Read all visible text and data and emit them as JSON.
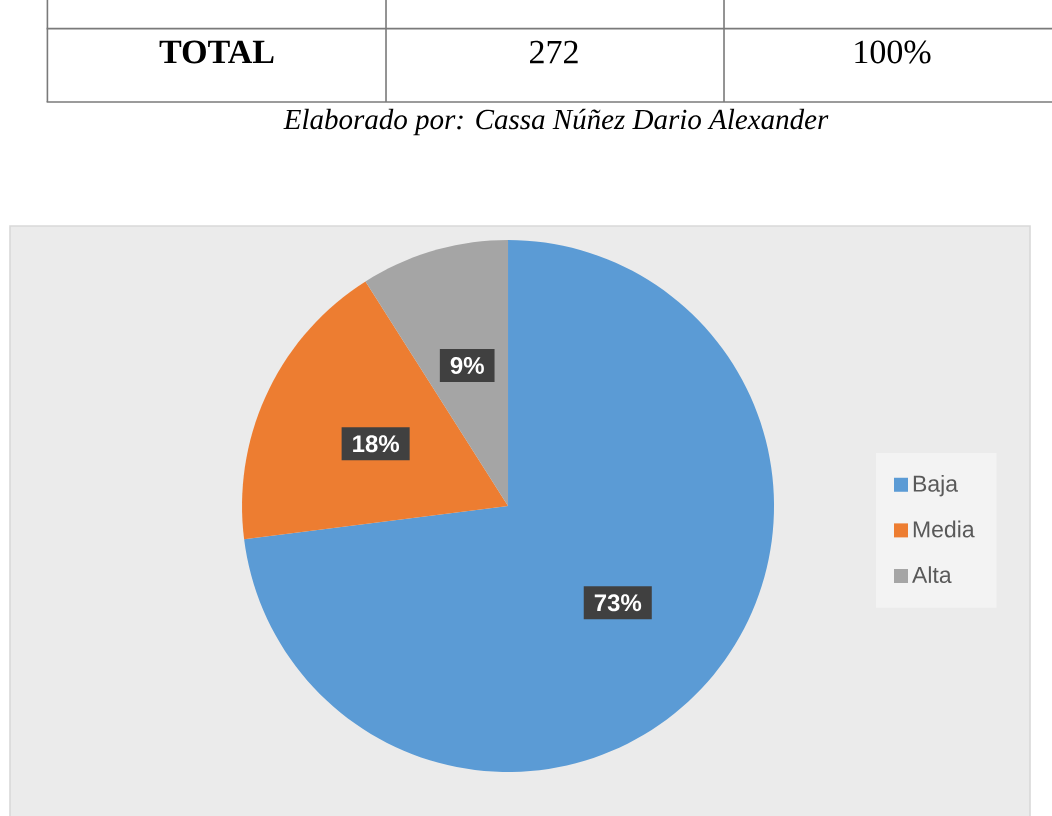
{
  "chart_data": {
    "type": "pie",
    "categories": [
      "Baja",
      "Media",
      "Alta"
    ],
    "values": [
      73,
      18,
      9
    ],
    "colors": [
      "#5b9bd5",
      "#ed7d31",
      "#a5a5a5"
    ],
    "value_labels": [
      "73%",
      "18%",
      "9%"
    ],
    "legend": "right",
    "annotations": [
      "TOTAL",
      "272",
      "100%",
      "Elaborado por: Cassa Núñez Dario Alexander"
    ]
  }
}
